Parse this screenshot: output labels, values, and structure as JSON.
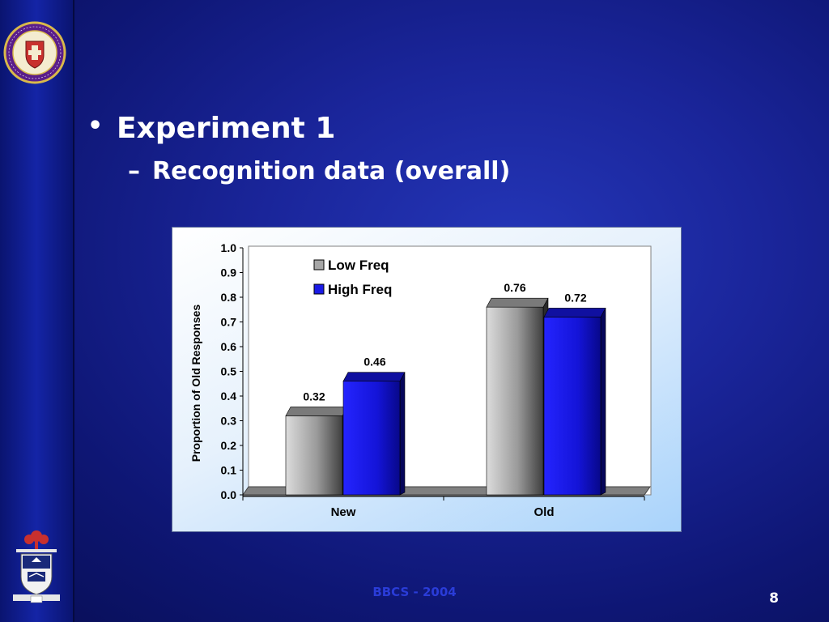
{
  "slide": {
    "bullet": "Experiment 1",
    "sub_bullet": "Recognition data (overall)",
    "footer": "BBCS - 2004",
    "page_number": "8"
  },
  "logos": {
    "top": "Wilfrid Laurier University seal",
    "bottom": "University crest"
  },
  "colors": {
    "background": "#1a259a",
    "low_freq": "#a6a6a6",
    "high_freq": "#1a1ae6",
    "footer_text": "#2a3cd8"
  },
  "chart_data": {
    "type": "bar",
    "categories": [
      "New",
      "Old"
    ],
    "series": [
      {
        "name": "Low Freq",
        "values": [
          0.32,
          0.76
        ],
        "labels": [
          "0.32",
          "0.76"
        ]
      },
      {
        "name": "High Freq",
        "values": [
          0.46,
          0.72
        ],
        "labels": [
          "0.46",
          "0.72"
        ]
      }
    ],
    "title": "",
    "xlabel": "",
    "ylabel": "Proportion of Old Responses",
    "ylim": [
      0,
      1.0
    ],
    "yticks": [
      "0.0",
      "0.1",
      "0.2",
      "0.3",
      "0.4",
      "0.5",
      "0.6",
      "0.7",
      "0.8",
      "0.9",
      "1.0"
    ],
    "grid": false,
    "legend": "top-left",
    "style": "3d"
  }
}
